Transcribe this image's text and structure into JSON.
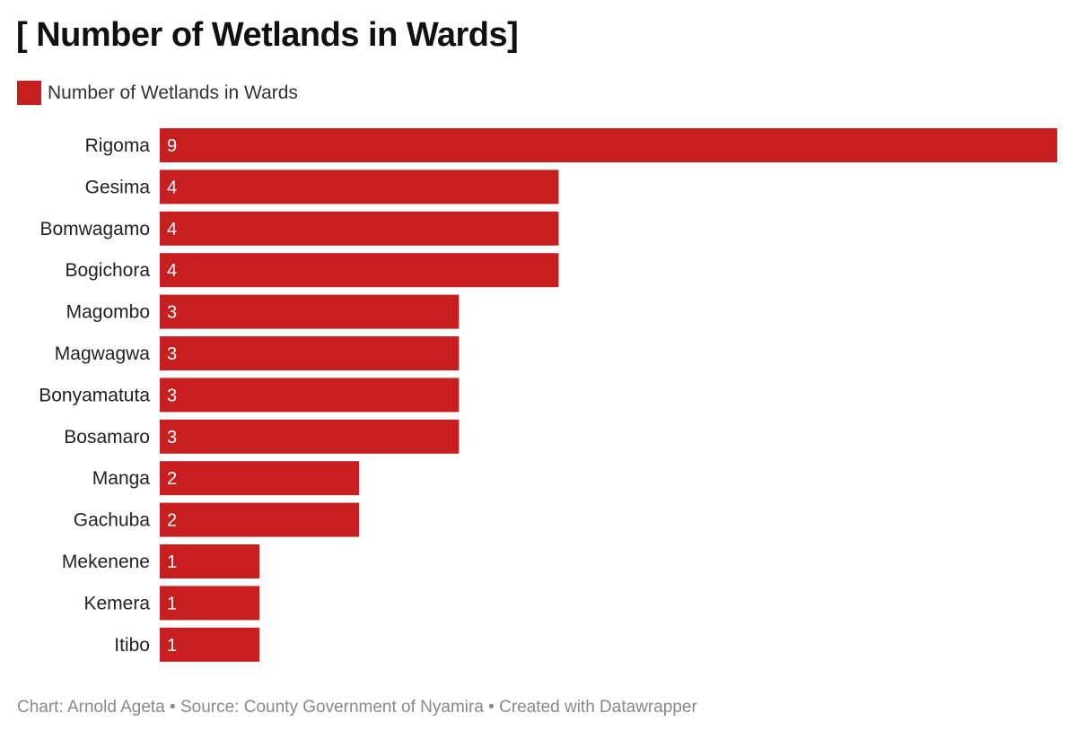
{
  "title": "[ Number of Wetlands in Wards]",
  "footer": "Chart: Arnold Ageta • Source: County Government of Nyamira • Created with Datawrapper",
  "chart_data": {
    "type": "bar",
    "orientation": "horizontal",
    "title": "[ Number of Wetlands in Wards]",
    "legend": {
      "placement": "top-left",
      "entries": [
        "Number of Wetlands in Wards"
      ]
    },
    "categories": [
      "Rigoma",
      "Gesima",
      "Bomwagamo",
      "Bogichora",
      "Magombo",
      "Magwagwa",
      "Bonyamatuta",
      "Bosamaro",
      "Manga",
      "Gachuba",
      "Mekenene",
      "Kemera",
      "Itibo"
    ],
    "series": [
      {
        "name": "Number of Wetlands in Wards",
        "color": "#c71e1f",
        "values": [
          9,
          4,
          4,
          4,
          3,
          3,
          3,
          3,
          2,
          2,
          1,
          1,
          1
        ]
      }
    ],
    "xlim": [
      0,
      9
    ],
    "grid": false,
    "data_labels": true
  }
}
